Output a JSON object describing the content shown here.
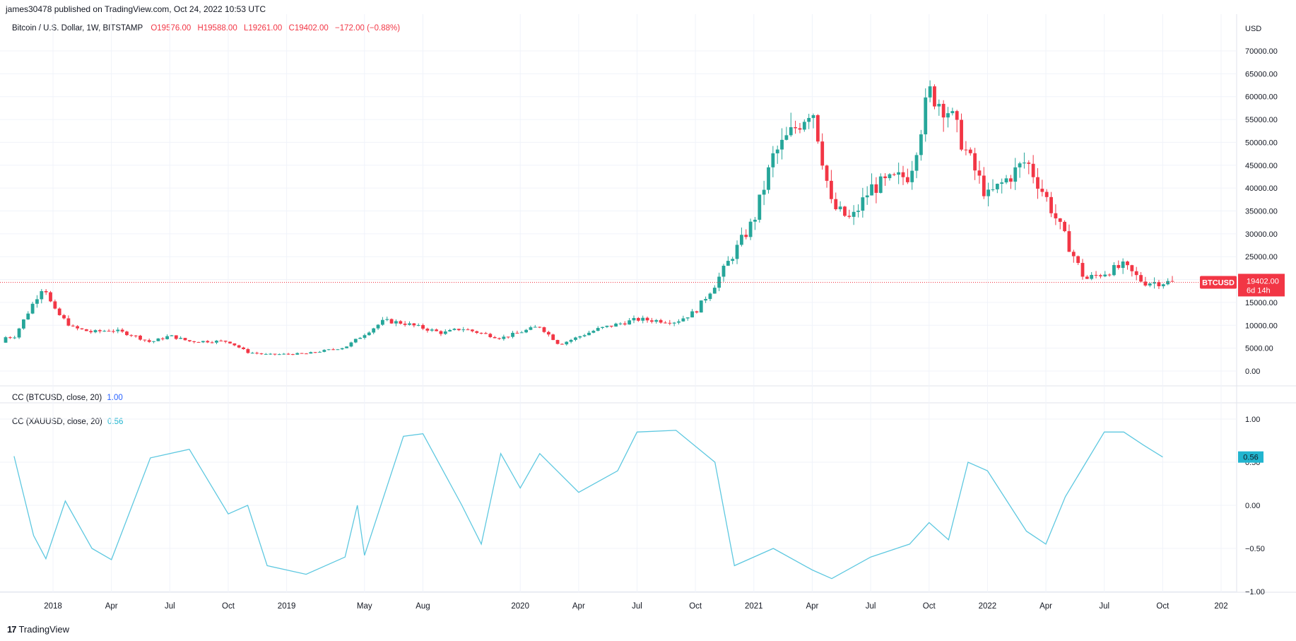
{
  "header": {
    "published": "james30478 published on TradingView.com, Oct 24, 2022 10:53 UTC"
  },
  "legend": {
    "symbol": "Bitcoin / U.S. Dollar, 1W, BITSTAMP",
    "open": "O19576.00",
    "high": "H19588.00",
    "low": "L19261.00",
    "close": "C19402.00",
    "change": "−172.00 (−0.88%)"
  },
  "cc1": {
    "label": "CC (BTCUSD, close, 20)",
    "value": "1.00"
  },
  "cc2": {
    "label": "CC (XAUUSD, close, 20)",
    "value": "0.56"
  },
  "footer": {
    "logo_text": "17",
    "brand": "TradingView"
  },
  "colors": {
    "up": "#26a69a",
    "down": "#f23645",
    "cc_line": "#5ec8e0",
    "grid": "#f0f3fa"
  },
  "chart_data": [
    {
      "type": "candlestick",
      "title": "Bitcoin / U.S. Dollar, 1W, BITSTAMP",
      "currency": "USD",
      "ylim": [
        0,
        72000
      ],
      "y_ticks": [
        "70000.00",
        "65000.00",
        "60000.00",
        "55000.00",
        "50000.00",
        "45000.00",
        "40000.00",
        "35000.00",
        "30000.00",
        "25000.00",
        "20000.00",
        "15000.00",
        "10000.00",
        "5000.00",
        "0.00"
      ],
      "x_ticks": [
        "2018",
        "Apr",
        "Jul",
        "Oct",
        "2019",
        "May",
        "Aug",
        "2020",
        "Apr",
        "Jul",
        "Oct",
        "2021",
        "Apr",
        "Jul",
        "Oct",
        "2022",
        "Apr",
        "Jul",
        "Oct",
        "202"
      ],
      "price_line": {
        "label": "BTCUSD",
        "value": "19402.00",
        "countdown": "6d 14h"
      },
      "approx_weekly_close": [
        {
          "t": "2017-11",
          "close": 7400
        },
        {
          "t": "2017-12",
          "close": 15000
        },
        {
          "t": "2017-12-17",
          "close": 19000
        },
        {
          "t": "2018-01",
          "close": 13500
        },
        {
          "t": "2018-02",
          "close": 9500
        },
        {
          "t": "2018-03",
          "close": 8500
        },
        {
          "t": "2018-04",
          "close": 9000
        },
        {
          "t": "2018-05",
          "close": 8000
        },
        {
          "t": "2018-06",
          "close": 6300
        },
        {
          "t": "2018-07",
          "close": 7700
        },
        {
          "t": "2018-08",
          "close": 6500
        },
        {
          "t": "2018-10",
          "close": 6500
        },
        {
          "t": "2018-11",
          "close": 4100
        },
        {
          "t": "2018-12",
          "close": 3600
        },
        {
          "t": "2019-02",
          "close": 3800
        },
        {
          "t": "2019-04",
          "close": 5200
        },
        {
          "t": "2019-06",
          "close": 11000
        },
        {
          "t": "2019-07",
          "close": 10500
        },
        {
          "t": "2019-09",
          "close": 8300
        },
        {
          "t": "2019-10",
          "close": 9300
        },
        {
          "t": "2019-12",
          "close": 7200
        },
        {
          "t": "2020-02",
          "close": 9800
        },
        {
          "t": "2020-03",
          "close": 5800
        },
        {
          "t": "2020-05",
          "close": 9200
        },
        {
          "t": "2020-07",
          "close": 11300
        },
        {
          "t": "2020-09",
          "close": 10800
        },
        {
          "t": "2020-10",
          "close": 13000
        },
        {
          "t": "2020-11",
          "close": 19000
        },
        {
          "t": "2021-01",
          "close": 33000
        },
        {
          "t": "2021-02",
          "close": 47000
        },
        {
          "t": "2021-04",
          "close": 58000
        },
        {
          "t": "2021-05",
          "close": 36000
        },
        {
          "t": "2021-06",
          "close": 33000
        },
        {
          "t": "2021-07",
          "close": 40000
        },
        {
          "t": "2021-09",
          "close": 43000
        },
        {
          "t": "2021-10",
          "close": 61000
        },
        {
          "t": "2021-11",
          "close": 57000
        },
        {
          "t": "2021-12",
          "close": 47000
        },
        {
          "t": "2022-01",
          "close": 38000
        },
        {
          "t": "2022-03",
          "close": 46000
        },
        {
          "t": "2022-04",
          "close": 38000
        },
        {
          "t": "2022-05",
          "close": 29000
        },
        {
          "t": "2022-06",
          "close": 20000
        },
        {
          "t": "2022-08",
          "close": 23000
        },
        {
          "t": "2022-09",
          "close": 19400
        },
        {
          "t": "2022-10",
          "close": 19402
        }
      ]
    },
    {
      "type": "line",
      "title": "CC (XAUUSD, close, 20)",
      "ylim": [
        -1.0,
        1.0
      ],
      "y_ticks": [
        "1.00",
        "0.50",
        "0.00",
        "-0.50",
        "-1.00"
      ],
      "last_value": "0.56",
      "approx_series": [
        {
          "t": "2017-11",
          "v": 0.57
        },
        {
          "t": "2017-12",
          "v": -0.35
        },
        {
          "t": "2017-12-20",
          "v": -0.62
        },
        {
          "t": "2018-01-20",
          "v": 0.05
        },
        {
          "t": "2018-03",
          "v": -0.5
        },
        {
          "t": "2018-04",
          "v": -0.63
        },
        {
          "t": "2018-06",
          "v": 0.55
        },
        {
          "t": "2018-08",
          "v": 0.65
        },
        {
          "t": "2018-10",
          "v": -0.1
        },
        {
          "t": "2018-11",
          "v": 0.0
        },
        {
          "t": "2018-12",
          "v": -0.7
        },
        {
          "t": "2019-02",
          "v": -0.8
        },
        {
          "t": "2019-04",
          "v": -0.6
        },
        {
          "t": "2019-04-20",
          "v": 0.0
        },
        {
          "t": "2019-05",
          "v": -0.58
        },
        {
          "t": "2019-07",
          "v": 0.8
        },
        {
          "t": "2019-08",
          "v": 0.83
        },
        {
          "t": "2019-10",
          "v": 0.0
        },
        {
          "t": "2019-11",
          "v": -0.45
        },
        {
          "t": "2019-12",
          "v": 0.6
        },
        {
          "t": "2020-01",
          "v": 0.2
        },
        {
          "t": "2020-02",
          "v": 0.6
        },
        {
          "t": "2020-04",
          "v": 0.15
        },
        {
          "t": "2020-06",
          "v": 0.4
        },
        {
          "t": "2020-07",
          "v": 0.85
        },
        {
          "t": "2020-09",
          "v": 0.87
        },
        {
          "t": "2020-11",
          "v": 0.5
        },
        {
          "t": "2020-12",
          "v": -0.7
        },
        {
          "t": "2021-02",
          "v": -0.5
        },
        {
          "t": "2021-04",
          "v": -0.75
        },
        {
          "t": "2021-05",
          "v": -0.85
        },
        {
          "t": "2021-07",
          "v": -0.6
        },
        {
          "t": "2021-09",
          "v": -0.45
        },
        {
          "t": "2021-10",
          "v": -0.2
        },
        {
          "t": "2021-11",
          "v": -0.4
        },
        {
          "t": "2021-12",
          "v": 0.5
        },
        {
          "t": "2022-01",
          "v": 0.4
        },
        {
          "t": "2022-03",
          "v": -0.3
        },
        {
          "t": "2022-04",
          "v": -0.45
        },
        {
          "t": "2022-05",
          "v": 0.1
        },
        {
          "t": "2022-07",
          "v": 0.85
        },
        {
          "t": "2022-08",
          "v": 0.85
        },
        {
          "t": "2022-09",
          "v": 0.7
        },
        {
          "t": "2022-10",
          "v": 0.56
        }
      ]
    }
  ]
}
